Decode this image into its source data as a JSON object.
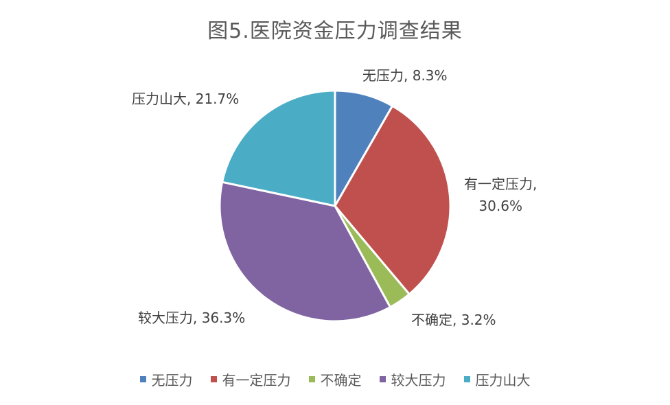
{
  "chart_data": {
    "type": "pie",
    "title": "图5.医院资金压力调查结果",
    "categories": [
      "无压力",
      "有一定压力",
      "不确定",
      "较大压力",
      "压力山大"
    ],
    "values": [
      8.3,
      30.6,
      3.2,
      36.3,
      21.7
    ],
    "unit": "%",
    "colors": [
      "#4F81BD",
      "#C0504D",
      "#9BBB59",
      "#8064A2",
      "#4BACC6"
    ],
    "data_labels": [
      {
        "lines": [
          "无压力, 8.3%"
        ]
      },
      {
        "lines": [
          "有一定压力,",
          "30.6%"
        ]
      },
      {
        "lines": [
          "不确定, 3.2%"
        ]
      },
      {
        "lines": [
          "较大压力, 36.3%"
        ]
      },
      {
        "lines": [
          "压力山大, 21.7%"
        ]
      }
    ],
    "legend": {
      "position": "bottom",
      "items": [
        "无压力",
        "有一定压力",
        "不确定",
        "较大压力",
        "压力山大"
      ]
    }
  }
}
